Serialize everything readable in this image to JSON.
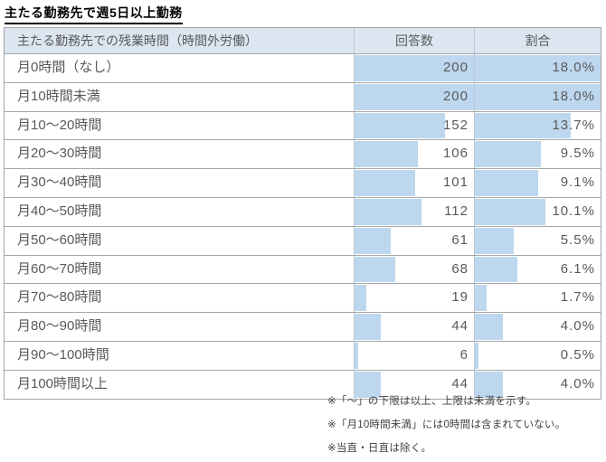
{
  "page": {
    "title": "主たる勤務先で週5日以上勤務"
  },
  "table": {
    "headers": {
      "label": "主たる勤務先での残業時間（時間外労働）",
      "count": "回答数",
      "ratio": "割合"
    },
    "rows": [
      {
        "label": "月0時間（なし）",
        "count": 200,
        "ratio": 18.0,
        "ratio_label": "18.0%"
      },
      {
        "label": "月10時間未満",
        "count": 200,
        "ratio": 18.0,
        "ratio_label": "18.0%"
      },
      {
        "label": "月10～20時間",
        "count": 152,
        "ratio": 13.7,
        "ratio_label": "13.7%"
      },
      {
        "label": "月20～30時間",
        "count": 106,
        "ratio": 9.5,
        "ratio_label": "9.5%"
      },
      {
        "label": "月30～40時間",
        "count": 101,
        "ratio": 9.1,
        "ratio_label": "9.1%"
      },
      {
        "label": "月40～50時間",
        "count": 112,
        "ratio": 10.1,
        "ratio_label": "10.1%"
      },
      {
        "label": "月50～60時間",
        "count": 61,
        "ratio": 5.5,
        "ratio_label": "5.5%"
      },
      {
        "label": "月60～70時間",
        "count": 68,
        "ratio": 6.1,
        "ratio_label": "6.1%"
      },
      {
        "label": "月70～80時間",
        "count": 19,
        "ratio": 1.7,
        "ratio_label": "1.7%"
      },
      {
        "label": "月80～90時間",
        "count": 44,
        "ratio": 4.0,
        "ratio_label": "4.0%"
      },
      {
        "label": "月90～100時間",
        "count": 6,
        "ratio": 0.5,
        "ratio_label": "0.5%"
      },
      {
        "label": "月100時間以上",
        "count": 44,
        "ratio": 4.0,
        "ratio_label": "4.0%"
      }
    ]
  },
  "footnotes": [
    "※「～」の下限は以上、上限は未満を示す。",
    "※「月10時間未満」には0時間は含まれていない。",
    "※当直・日直は除く。"
  ],
  "colors": {
    "data_bar_fill": "#BDD7EE",
    "header_background": "#DCE6F1",
    "row_border": "#A6A6A6",
    "column_border": "#BFC8D4",
    "cell_text": "#595959",
    "title_text": "#000000"
  },
  "chart_data": {
    "type": "bar",
    "representation": "table-with-data-bars",
    "orientation": "horizontal",
    "title": "主たる勤務先で週5日以上勤務",
    "categories": [
      "月0時間（なし）",
      "月10時間未満",
      "月10～20時間",
      "月20～30時間",
      "月30～40時間",
      "月40～50時間",
      "月50～60時間",
      "月60～70時間",
      "月70～80時間",
      "月80～90時間",
      "月90～100時間",
      "月100時間以上"
    ],
    "series": [
      {
        "name": "回答数",
        "values": [
          200,
          200,
          152,
          106,
          101,
          112,
          61,
          68,
          19,
          44,
          6,
          44
        ],
        "axis_max": 200
      },
      {
        "name": "割合",
        "unit": "%",
        "values": [
          18.0,
          18.0,
          13.7,
          9.5,
          9.1,
          10.1,
          5.5,
          6.1,
          1.7,
          4.0,
          0.5,
          4.0
        ],
        "axis_max": 18.0
      }
    ],
    "annotations": [
      "※「～」の下限は以上、上限は未満を示す。",
      "※「月10時間未満」には0時間は含まれていない。",
      "※当直・日直は除く。"
    ],
    "legend": "none",
    "grid": "off"
  }
}
